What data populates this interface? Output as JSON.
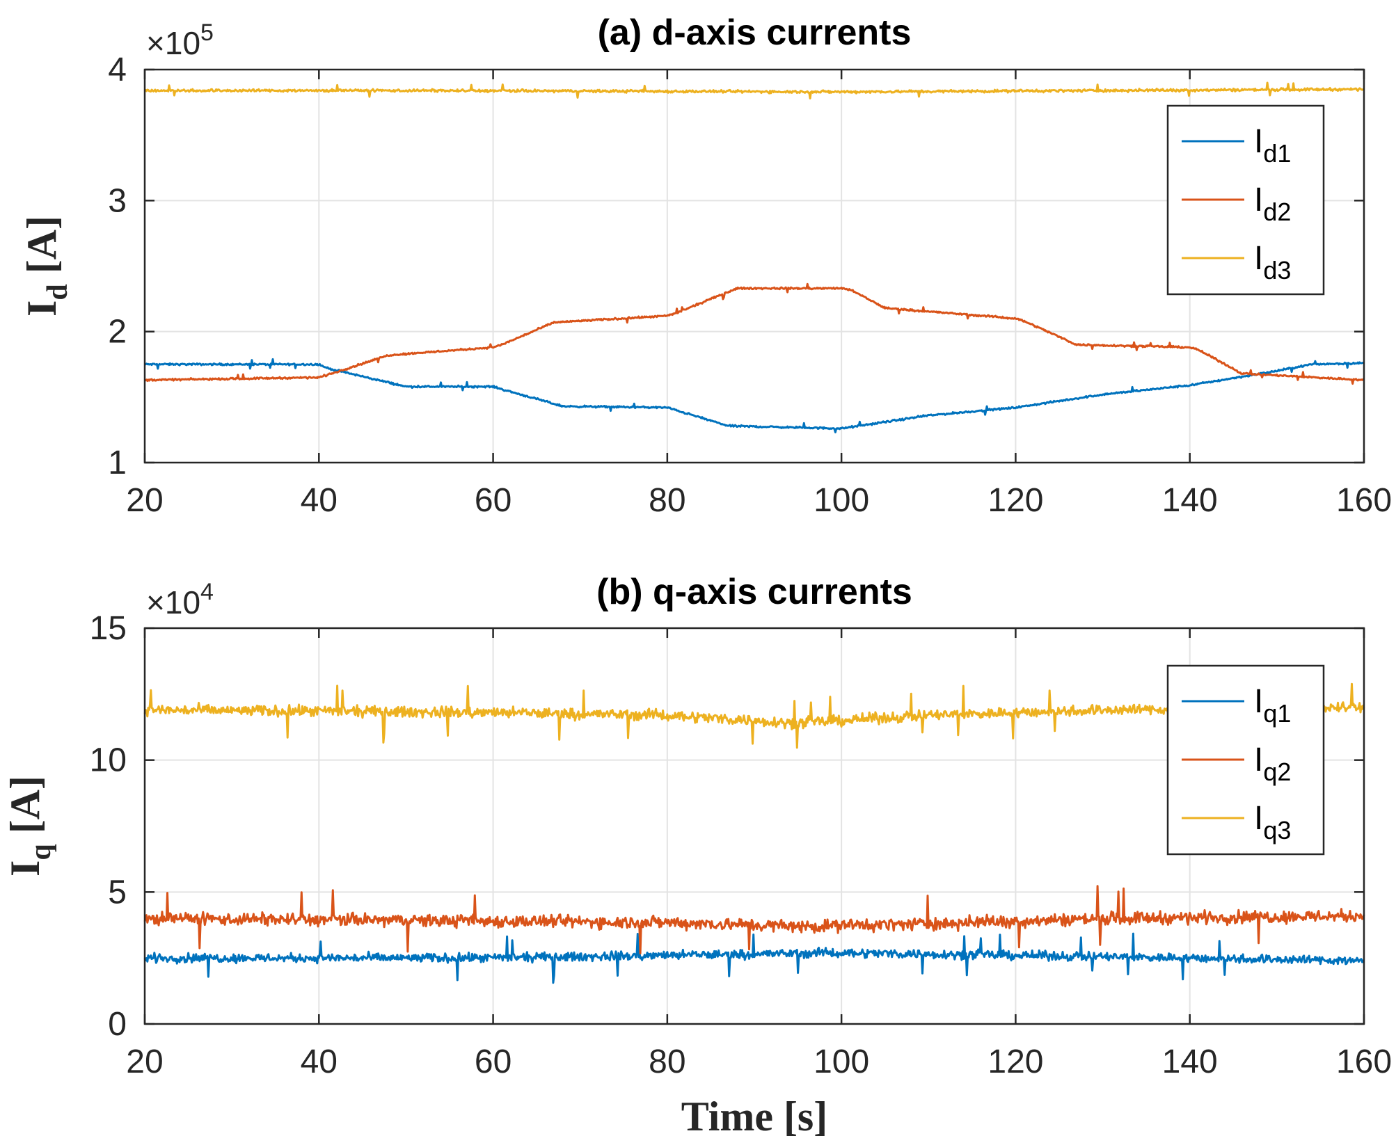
{
  "chart_data": [
    {
      "type": "line",
      "title": "(a) d-axis currents",
      "ylabel": "I",
      "ylabel_sub": "d",
      "ylabel_unit": " [A]",
      "exponent_label": "×10",
      "exponent_power": "5",
      "xlabel": "",
      "xlim": [
        20,
        160
      ],
      "ylim": [
        1,
        4
      ],
      "xticks": [
        "20",
        "40",
        "60",
        "80",
        "100",
        "120",
        "140",
        "160"
      ],
      "yticks": [
        "1",
        "2",
        "3",
        "4"
      ],
      "grid": true,
      "legend_position": "top-right",
      "series": [
        {
          "name": "I",
          "sub": "d1",
          "color": "#0072BD",
          "noise": 0.01,
          "x": [
            20,
            40,
            41,
            50,
            60,
            61,
            68,
            80,
            81,
            87,
            100,
            101,
            110,
            120,
            121,
            130,
            140,
            150,
            154,
            160
          ],
          "y": [
            1.75,
            1.75,
            1.72,
            1.58,
            1.58,
            1.56,
            1.43,
            1.42,
            1.4,
            1.28,
            1.26,
            1.27,
            1.36,
            1.42,
            1.43,
            1.52,
            1.59,
            1.7,
            1.75,
            1.76
          ]
        },
        {
          "name": "I",
          "sub": "d2",
          "color": "#D95319",
          "noise": 0.01,
          "x": [
            20,
            40,
            41,
            48,
            60,
            61,
            67,
            80,
            81,
            88,
            100,
            101,
            105,
            120,
            121,
            127,
            140,
            141,
            146,
            160
          ],
          "y": [
            1.63,
            1.65,
            1.67,
            1.82,
            1.88,
            1.9,
            2.07,
            2.12,
            2.14,
            2.33,
            2.33,
            2.32,
            2.18,
            2.1,
            2.08,
            1.9,
            1.88,
            1.86,
            1.68,
            1.63
          ]
        },
        {
          "name": "I",
          "sub": "d3",
          "color": "#EDB120",
          "noise": 0.015,
          "x": [
            20,
            50,
            100,
            130,
            160
          ],
          "y": [
            3.84,
            3.84,
            3.83,
            3.84,
            3.85
          ]
        }
      ]
    },
    {
      "type": "line",
      "title": "(b) q-axis currents",
      "ylabel": "I",
      "ylabel_sub": "q",
      "ylabel_unit": " [A]",
      "exponent_label": "×10",
      "exponent_power": "4",
      "xlabel": "Time [s]",
      "xlim": [
        20,
        160
      ],
      "ylim": [
        0,
        15
      ],
      "xticks": [
        "20",
        "40",
        "60",
        "80",
        "100",
        "120",
        "140",
        "160"
      ],
      "yticks": [
        "0",
        "5",
        "10",
        "15"
      ],
      "grid": true,
      "legend_position": "top-right",
      "series": [
        {
          "name": "I",
          "sub": "q1",
          "color": "#0072BD",
          "noise": 0.25,
          "x": [
            20,
            60,
            80,
            100,
            120,
            140,
            160
          ],
          "y": [
            2.5,
            2.5,
            2.6,
            2.7,
            2.6,
            2.5,
            2.4
          ]
        },
        {
          "name": "I",
          "sub": "q2",
          "color": "#D95319",
          "noise": 0.35,
          "x": [
            20,
            60,
            80,
            95,
            110,
            130,
            160
          ],
          "y": [
            4.0,
            3.9,
            3.85,
            3.7,
            3.8,
            4.0,
            4.1
          ]
        },
        {
          "name": "I",
          "sub": "q3",
          "color": "#EDB120",
          "noise": 0.3,
          "x": [
            20,
            60,
            80,
            95,
            110,
            130,
            160
          ],
          "y": [
            11.9,
            11.8,
            11.7,
            11.4,
            11.7,
            11.9,
            12.0
          ]
        }
      ]
    }
  ]
}
